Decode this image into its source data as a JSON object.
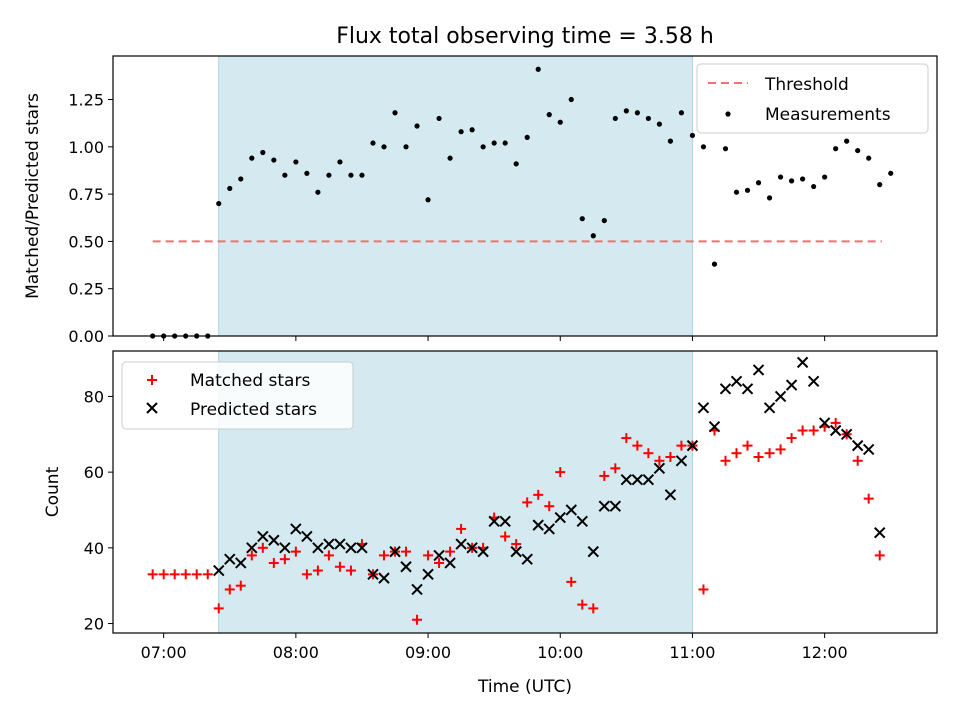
{
  "title": "Flux total observing time = 3.58 h",
  "chart_data": [
    {
      "type": "scatter",
      "ylabel": "Matched/Predicted stars",
      "xlim": [
        "06:37",
        "12:51"
      ],
      "ylim": [
        0,
        1.48
      ],
      "yticks": [
        0.0,
        0.25,
        0.5,
        0.75,
        1.0,
        1.25
      ],
      "ytick_labels": [
        "0.00",
        "0.25",
        "0.50",
        "0.75",
        "1.00",
        "1.25"
      ],
      "shaded_interval": {
        "start": "07:25",
        "end": "11:00",
        "color": "#d4eaf0"
      },
      "threshold": {
        "name": "Threshold",
        "value": 0.5,
        "x_range": [
          "06:55",
          "12:26"
        ],
        "color": "#f07070",
        "style": "dashed"
      },
      "legend_position": "top-right",
      "series": [
        {
          "name": "Measurements",
          "color": "#000000",
          "marker": "dot",
          "points": [
            [
              "06:55",
              0.0
            ],
            [
              "07:00",
              0.0
            ],
            [
              "07:05",
              0.0
            ],
            [
              "07:10",
              0.0
            ],
            [
              "07:15",
              0.0
            ],
            [
              "07:20",
              0.0
            ],
            [
              "07:25",
              0.7
            ],
            [
              "07:30",
              0.78
            ],
            [
              "07:35",
              0.83
            ],
            [
              "07:40",
              0.94
            ],
            [
              "07:45",
              0.97
            ],
            [
              "07:50",
              0.93
            ],
            [
              "07:55",
              0.85
            ],
            [
              "08:00",
              0.92
            ],
            [
              "08:05",
              0.86
            ],
            [
              "08:10",
              0.76
            ],
            [
              "08:15",
              0.85
            ],
            [
              "08:20",
              0.92
            ],
            [
              "08:25",
              0.85
            ],
            [
              "08:30",
              0.85
            ],
            [
              "08:35",
              1.02
            ],
            [
              "08:40",
              1.0
            ],
            [
              "08:45",
              1.18
            ],
            [
              "08:50",
              1.0
            ],
            [
              "08:55",
              1.11
            ],
            [
              "09:00",
              0.72
            ],
            [
              "09:05",
              1.15
            ],
            [
              "09:10",
              0.94
            ],
            [
              "09:15",
              1.08
            ],
            [
              "09:20",
              1.09
            ],
            [
              "09:25",
              1.0
            ],
            [
              "09:30",
              1.02
            ],
            [
              "09:35",
              1.02
            ],
            [
              "09:40",
              0.91
            ],
            [
              "09:45",
              1.05
            ],
            [
              "09:50",
              1.41
            ],
            [
              "09:55",
              1.17
            ],
            [
              "10:00",
              1.13
            ],
            [
              "10:05",
              1.25
            ],
            [
              "10:10",
              0.62
            ],
            [
              "10:15",
              0.53
            ],
            [
              "10:20",
              0.61
            ],
            [
              "10:25",
              1.15
            ],
            [
              "10:30",
              1.19
            ],
            [
              "10:35",
              1.18
            ],
            [
              "10:40",
              1.15
            ],
            [
              "10:45",
              1.12
            ],
            [
              "10:50",
              1.03
            ],
            [
              "10:55",
              1.18
            ],
            [
              "11:00",
              1.06
            ],
            [
              "11:05",
              1.0
            ],
            [
              "11:10",
              0.38
            ],
            [
              "11:15",
              0.99
            ],
            [
              "11:20",
              0.76
            ],
            [
              "11:25",
              0.77
            ],
            [
              "11:30",
              0.81
            ],
            [
              "11:35",
              0.73
            ],
            [
              "11:40",
              0.84
            ],
            [
              "11:45",
              0.82
            ],
            [
              "11:50",
              0.83
            ],
            [
              "11:55",
              0.79
            ],
            [
              "12:00",
              0.84
            ],
            [
              "12:05",
              0.99
            ],
            [
              "12:10",
              1.03
            ],
            [
              "12:15",
              0.98
            ],
            [
              "12:20",
              0.94
            ],
            [
              "12:25",
              0.8
            ],
            [
              "12:30",
              0.86
            ]
          ]
        }
      ]
    },
    {
      "type": "scatter",
      "xlabel": "Time (UTC)",
      "ylabel": "Count",
      "xlim": [
        "06:37",
        "12:51"
      ],
      "ylim": [
        17.5,
        92
      ],
      "xticks": [
        "07:00",
        "08:00",
        "09:00",
        "10:00",
        "11:00",
        "12:00"
      ],
      "yticks": [
        20,
        40,
        60,
        80
      ],
      "shaded_interval": {
        "start": "07:25",
        "end": "11:00",
        "color": "#d4eaf0"
      },
      "legend_position": "top-left",
      "series": [
        {
          "name": "Matched stars",
          "color": "#ff0000",
          "marker": "+",
          "points": [
            [
              "06:55",
              33
            ],
            [
              "07:00",
              33
            ],
            [
              "07:05",
              33
            ],
            [
              "07:10",
              33
            ],
            [
              "07:15",
              33
            ],
            [
              "07:20",
              33
            ],
            [
              "07:25",
              24
            ],
            [
              "07:30",
              29
            ],
            [
              "07:35",
              30
            ],
            [
              "07:40",
              38
            ],
            [
              "07:45",
              40
            ],
            [
              "07:50",
              36
            ],
            [
              "07:55",
              37
            ],
            [
              "08:00",
              39
            ],
            [
              "08:05",
              33
            ],
            [
              "08:10",
              34
            ],
            [
              "08:15",
              38
            ],
            [
              "08:20",
              35
            ],
            [
              "08:25",
              34
            ],
            [
              "08:30",
              41
            ],
            [
              "08:35",
              33
            ],
            [
              "08:40",
              38
            ],
            [
              "08:45",
              39
            ],
            [
              "08:50",
              39
            ],
            [
              "08:55",
              21
            ],
            [
              "09:00",
              38
            ],
            [
              "09:05",
              36
            ],
            [
              "09:10",
              39
            ],
            [
              "09:15",
              45
            ],
            [
              "09:20",
              40
            ],
            [
              "09:25",
              40
            ],
            [
              "09:30",
              48
            ],
            [
              "09:35",
              43
            ],
            [
              "09:40",
              41
            ],
            [
              "09:45",
              52
            ],
            [
              "09:50",
              54
            ],
            [
              "09:55",
              51
            ],
            [
              "10:00",
              60
            ],
            [
              "10:05",
              31
            ],
            [
              "10:10",
              25
            ],
            [
              "10:15",
              24
            ],
            [
              "10:20",
              59
            ],
            [
              "10:25",
              61
            ],
            [
              "10:30",
              69
            ],
            [
              "10:35",
              67
            ],
            [
              "10:40",
              65
            ],
            [
              "10:45",
              63
            ],
            [
              "10:50",
              64
            ],
            [
              "10:55",
              67
            ],
            [
              "11:00",
              67
            ],
            [
              "11:05",
              29
            ],
            [
              "11:10",
              71
            ],
            [
              "11:15",
              63
            ],
            [
              "11:20",
              65
            ],
            [
              "11:25",
              67
            ],
            [
              "11:30",
              64
            ],
            [
              "11:35",
              65
            ],
            [
              "11:40",
              66
            ],
            [
              "11:45",
              69
            ],
            [
              "11:50",
              71
            ],
            [
              "11:55",
              71
            ],
            [
              "12:00",
              72
            ],
            [
              "12:05",
              73
            ],
            [
              "12:10",
              70
            ],
            [
              "12:15",
              63
            ],
            [
              "12:20",
              53
            ],
            [
              "12:25",
              38
            ]
          ]
        },
        {
          "name": "Predicted stars",
          "color": "#000000",
          "marker": "x",
          "points": [
            [
              "07:25",
              34
            ],
            [
              "07:30",
              37
            ],
            [
              "07:35",
              36
            ],
            [
              "07:40",
              40
            ],
            [
              "07:45",
              43
            ],
            [
              "07:50",
              42
            ],
            [
              "07:55",
              40
            ],
            [
              "08:00",
              45
            ],
            [
              "08:05",
              43
            ],
            [
              "08:10",
              40
            ],
            [
              "08:15",
              41
            ],
            [
              "08:20",
              41
            ],
            [
              "08:25",
              40
            ],
            [
              "08:30",
              40
            ],
            [
              "08:35",
              33
            ],
            [
              "08:40",
              32
            ],
            [
              "08:45",
              39
            ],
            [
              "08:50",
              35
            ],
            [
              "08:55",
              29
            ],
            [
              "09:00",
              33
            ],
            [
              "09:05",
              38
            ],
            [
              "09:10",
              36
            ],
            [
              "09:15",
              41
            ],
            [
              "09:20",
              40
            ],
            [
              "09:25",
              39
            ],
            [
              "09:30",
              47
            ],
            [
              "09:35",
              47
            ],
            [
              "09:40",
              39
            ],
            [
              "09:45",
              37
            ],
            [
              "09:50",
              46
            ],
            [
              "09:55",
              45
            ],
            [
              "10:00",
              48
            ],
            [
              "10:05",
              50
            ],
            [
              "10:10",
              47
            ],
            [
              "10:15",
              39
            ],
            [
              "10:20",
              51
            ],
            [
              "10:25",
              51
            ],
            [
              "10:30",
              58
            ],
            [
              "10:35",
              58
            ],
            [
              "10:40",
              58
            ],
            [
              "10:45",
              61
            ],
            [
              "10:50",
              54
            ],
            [
              "10:55",
              63
            ],
            [
              "11:00",
              67
            ],
            [
              "11:05",
              77
            ],
            [
              "11:10",
              72
            ],
            [
              "11:15",
              82
            ],
            [
              "11:20",
              84
            ],
            [
              "11:25",
              82
            ],
            [
              "11:30",
              87
            ],
            [
              "11:35",
              77
            ],
            [
              "11:40",
              80
            ],
            [
              "11:45",
              83
            ],
            [
              "11:50",
              89
            ],
            [
              "11:55",
              84
            ],
            [
              "12:00",
              73
            ],
            [
              "12:05",
              71
            ],
            [
              "12:10",
              70
            ],
            [
              "12:15",
              67
            ],
            [
              "12:20",
              66
            ],
            [
              "12:25",
              44
            ]
          ]
        }
      ]
    }
  ]
}
